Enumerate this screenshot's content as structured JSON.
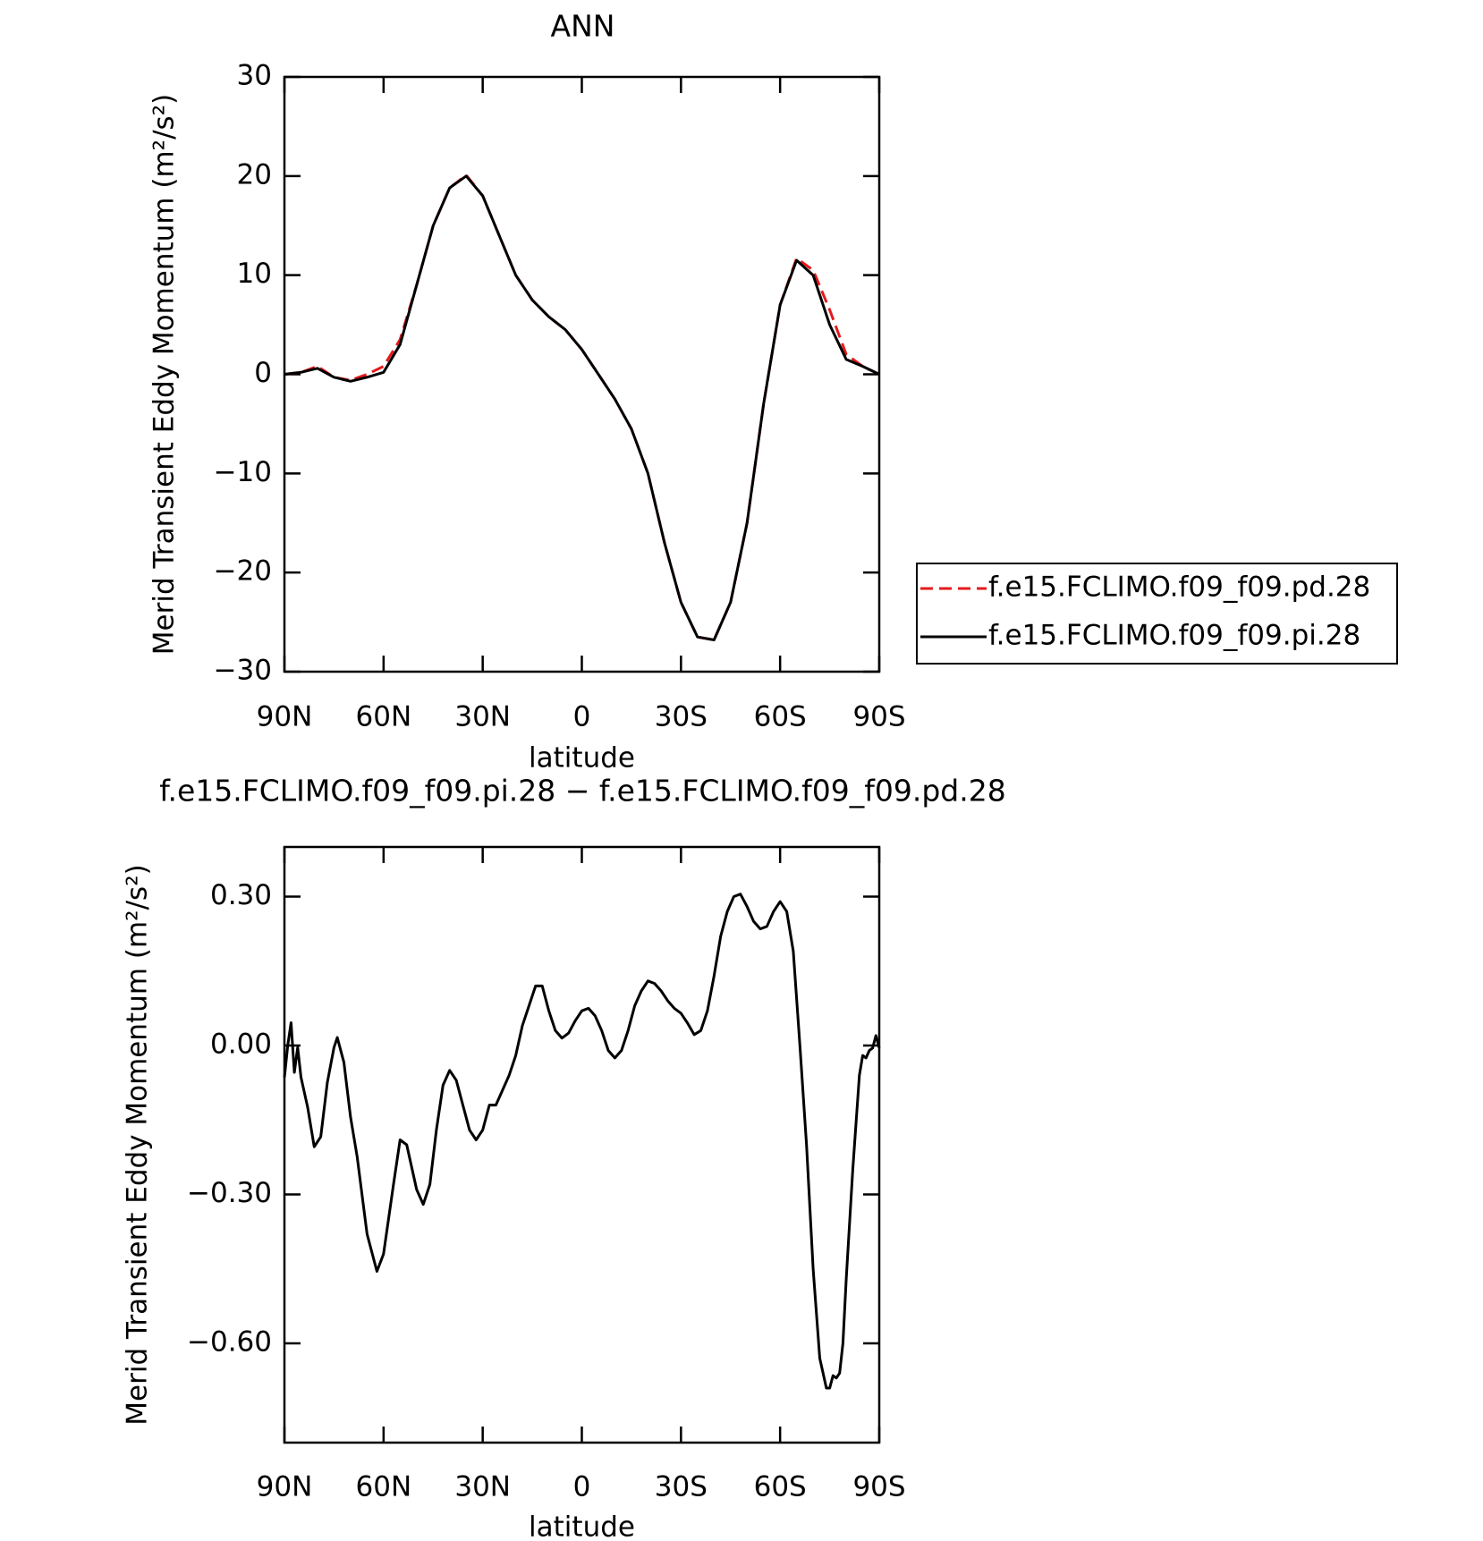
{
  "chart_data": [
    {
      "type": "line",
      "title": "ANN",
      "xlabel": "latitude",
      "ylabel": "Merid Transient Eddy Momentum (m²/s²)",
      "x": [
        90,
        85,
        80,
        75,
        70,
        65,
        60,
        55,
        50,
        45,
        40,
        35,
        30,
        25,
        20,
        15,
        10,
        5,
        0,
        -5,
        -10,
        -15,
        -20,
        -25,
        -30,
        -35,
        -40,
        -45,
        -50,
        -55,
        -60,
        -65,
        -70,
        -75,
        -80,
        -85,
        -90
      ],
      "series": [
        {
          "name": "f.e15.FCLIMO.f09_f09.pd.28",
          "color": "#e41a1c",
          "linestyle": "dashed",
          "values": [
            0,
            0.2,
            0.8,
            -0.3,
            -0.6,
            0,
            0.8,
            3.5,
            9,
            15,
            18.8,
            20.1,
            18,
            14,
            10,
            7.5,
            5.8,
            4.5,
            2.5,
            0,
            -2.5,
            -5.5,
            -10,
            -17,
            -23,
            -26.5,
            -26.8,
            -23,
            -15,
            -3,
            7,
            11.7,
            10.5,
            6.5,
            2,
            0.8,
            0
          ]
        },
        {
          "name": "f.e15.FCLIMO.f09_f09.pi.28",
          "color": "#000000",
          "linestyle": "solid",
          "values": [
            0,
            0.2,
            0.6,
            -0.3,
            -0.7,
            -0.3,
            0.2,
            3,
            9,
            15,
            18.8,
            20,
            18,
            14,
            10,
            7.5,
            5.8,
            4.5,
            2.5,
            0,
            -2.5,
            -5.5,
            -10,
            -17,
            -23,
            -26.5,
            -26.8,
            -23,
            -15,
            -3,
            7,
            11.5,
            10,
            5,
            1.5,
            0.8,
            0
          ]
        }
      ],
      "xlim": [
        90,
        -90
      ],
      "xticks": [
        {
          "value": 90,
          "label": "90N"
        },
        {
          "value": 60,
          "label": "60N"
        },
        {
          "value": 30,
          "label": "30N"
        },
        0,
        {
          "value": -30,
          "label": "30S"
        },
        {
          "value": -60,
          "label": "60S"
        },
        {
          "value": -90,
          "label": "90S"
        }
      ],
      "ylim": [
        -30,
        30
      ],
      "yticks": [
        {
          "value": -30,
          "label": "−30"
        },
        {
          "value": -20,
          "label": "−20"
        },
        {
          "value": -10,
          "label": "−10"
        },
        0,
        10,
        20,
        30
      ],
      "legend": "right",
      "grid": false
    },
    {
      "type": "line",
      "title": "f.e15.FCLIMO.f09_f09.pi.28 − f.e15.FCLIMO.f09_f09.pd.28",
      "xlabel": "latitude",
      "ylabel": "Merid Transient Eddy Momentum (m²/s²)",
      "x": [
        90,
        89,
        88,
        87,
        86,
        85,
        83,
        81,
        79,
        77,
        75,
        74,
        72,
        70,
        68,
        65,
        62,
        60,
        57,
        55,
        53,
        50,
        48,
        46,
        44,
        42,
        40,
        38,
        36,
        34,
        32,
        30,
        28,
        26,
        24,
        22,
        20,
        18,
        16,
        14,
        12,
        10,
        8,
        6,
        4,
        2,
        0,
        -2,
        -4,
        -6,
        -8,
        -10,
        -12,
        -14,
        -16,
        -18,
        -20,
        -22,
        -24,
        -26,
        -28,
        -30,
        -32,
        -34,
        -36,
        -38,
        -40,
        -42,
        -44,
        -46,
        -48,
        -50,
        -52,
        -54,
        -56,
        -58,
        -60,
        -62,
        -64,
        -66,
        -68,
        -70,
        -72,
        -74,
        -75,
        -76,
        -77,
        -78,
        -79,
        -80,
        -82,
        -84,
        -85,
        -86,
        -87,
        -88,
        -89,
        -90
      ],
      "series": [
        {
          "name": "f.e15.FCLIMO.f09_f09.pi.28 − f.e15.FCLIMO.f09_f09.pd.28",
          "color": "#000000",
          "linestyle": "solid",
          "values": [
            -0.064,
            0.0,
            0.046,
            -0.054,
            -0.004,
            -0.064,
            -0.124,
            -0.204,
            -0.184,
            -0.074,
            -0.004,
            0.016,
            -0.034,
            -0.144,
            -0.224,
            -0.38,
            -0.455,
            -0.42,
            -0.28,
            -0.19,
            -0.2,
            -0.29,
            -0.32,
            -0.28,
            -0.17,
            -0.08,
            -0.05,
            -0.07,
            -0.12,
            -0.17,
            -0.19,
            -0.17,
            -0.12,
            -0.12,
            -0.09,
            -0.06,
            -0.02,
            0.04,
            0.08,
            0.12,
            0.12,
            0.07,
            0.03,
            0.015,
            0.025,
            0.05,
            0.07,
            0.075,
            0.06,
            0.03,
            -0.01,
            -0.025,
            -0.01,
            0.03,
            0.08,
            0.11,
            0.13,
            0.125,
            0.11,
            0.09,
            0.075,
            0.065,
            0.045,
            0.022,
            0.03,
            0.07,
            0.14,
            0.22,
            0.27,
            0.3,
            0.305,
            0.28,
            0.25,
            0.235,
            0.24,
            0.27,
            0.29,
            0.27,
            0.19,
            0.0,
            -0.2,
            -0.45,
            -0.63,
            -0.69,
            -0.69,
            -0.665,
            -0.67,
            -0.66,
            -0.6,
            -0.47,
            -0.25,
            -0.06,
            -0.02,
            -0.025,
            -0.01,
            -0.005,
            0.02,
            -0.005
          ]
        }
      ],
      "xlim": [
        90,
        -90
      ],
      "xticks": [
        {
          "value": 90,
          "label": "90N"
        },
        {
          "value": 60,
          "label": "60N"
        },
        {
          "value": 30,
          "label": "30N"
        },
        0,
        {
          "value": -30,
          "label": "30S"
        },
        {
          "value": -60,
          "label": "60S"
        },
        {
          "value": -90,
          "label": "90S"
        }
      ],
      "ylim": [
        -0.8,
        0.4
      ],
      "yticks": [
        {
          "value": -0.6,
          "label": "−0.60"
        },
        {
          "value": -0.3,
          "label": "−0.30"
        },
        {
          "value": 0,
          "label": "0.00"
        },
        {
          "value": 0.3,
          "label": "0.30"
        }
      ],
      "grid": false
    }
  ]
}
